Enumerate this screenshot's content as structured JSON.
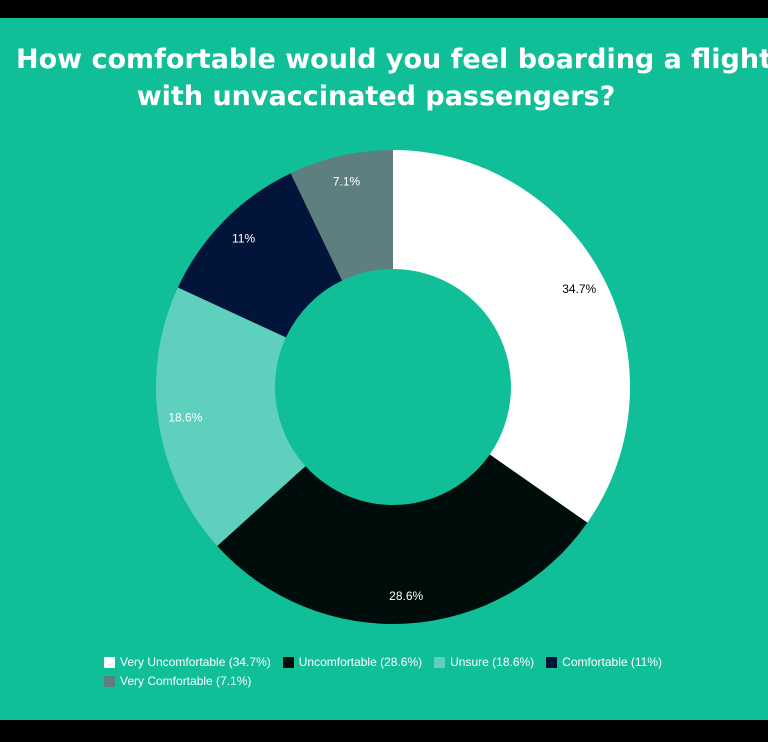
{
  "chart_data": {
    "type": "pie",
    "donut": true,
    "title": [
      "How comfortable would you feel boarding a flight",
      "with unvaccinated passengers?"
    ],
    "categories": [
      "Very Uncomfortable (34.7%)",
      "Uncomfortable (28.6%)",
      "Unsure (18.6%)",
      "Comfortable (11%)",
      "Very Comfortable (7.1%)"
    ],
    "values": [
      34.7,
      28.6,
      18.6,
      11,
      7.1
    ],
    "value_labels": [
      "34.7%",
      "28.6%",
      "18.6%",
      "11%",
      "7.1%"
    ],
    "colors": [
      "#ffffff",
      "#000d0a",
      "#5fd0bd",
      "#03143a",
      "#5e7f7f"
    ],
    "label_colors": [
      "#000000",
      "#ffffff",
      "#ffffff",
      "#ffffff",
      "#ffffff"
    ]
  }
}
